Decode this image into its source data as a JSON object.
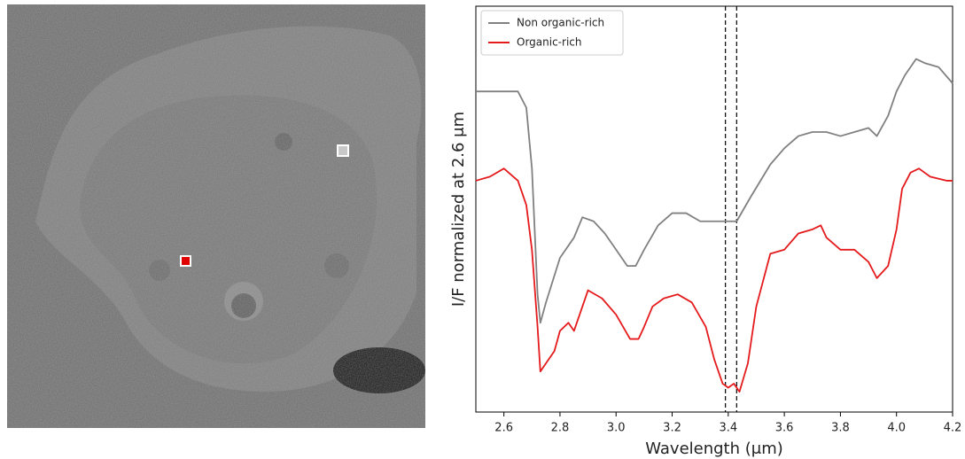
{
  "chart_data": {
    "type": "line",
    "xlabel": "Wavelength (μm)",
    "ylabel": "I/F normalized at 2.6 μm",
    "xlim": [
      2.5,
      4.2
    ],
    "xticks": [
      2.6,
      2.8,
      {
        "value": 3,
        "label": "3.0"
      },
      3.2,
      3.4,
      3.6,
      3.8,
      {
        "value": 4,
        "label": "4.0"
      },
      4.2
    ],
    "ylim": [
      0,
      1
    ],
    "vlines": [
      3.39,
      3.43
    ],
    "legend": "upper left",
    "series": [
      {
        "name": "Non organic-rich",
        "color": "#808080",
        "x": [
          2.5,
          2.55,
          2.6,
          2.65,
          2.68,
          2.7,
          2.72,
          2.73,
          2.75,
          2.8,
          2.85,
          2.88,
          2.92,
          2.96,
          3.0,
          3.04,
          3.07,
          3.1,
          3.15,
          3.2,
          3.25,
          3.3,
          3.35,
          3.39,
          3.43,
          3.48,
          3.55,
          3.6,
          3.65,
          3.7,
          3.75,
          3.8,
          3.85,
          3.9,
          3.93,
          3.97,
          4.0,
          4.03,
          4.07,
          4.1,
          4.15,
          4.2
        ],
        "values": [
          0.79,
          0.79,
          0.79,
          0.79,
          0.75,
          0.6,
          0.29,
          0.22,
          0.27,
          0.38,
          0.43,
          0.48,
          0.47,
          0.44,
          0.4,
          0.36,
          0.36,
          0.4,
          0.46,
          0.49,
          0.49,
          0.47,
          0.47,
          0.47,
          0.47,
          0.53,
          0.61,
          0.65,
          0.68,
          0.69,
          0.69,
          0.68,
          0.69,
          0.7,
          0.68,
          0.73,
          0.79,
          0.83,
          0.87,
          0.86,
          0.85,
          0.81
        ]
      },
      {
        "name": "Organic-rich",
        "color": "#e41a1c",
        "x": [
          2.5,
          2.55,
          2.6,
          2.65,
          2.68,
          2.7,
          2.72,
          2.73,
          2.75,
          2.78,
          2.8,
          2.83,
          2.85,
          2.88,
          2.9,
          2.95,
          3.0,
          3.05,
          3.08,
          3.1,
          3.13,
          3.17,
          3.22,
          3.27,
          3.32,
          3.35,
          3.38,
          3.4,
          3.42,
          3.44,
          3.47,
          3.5,
          3.55,
          3.6,
          3.65,
          3.7,
          3.73,
          3.75,
          3.8,
          3.85,
          3.9,
          3.93,
          3.97,
          4.0,
          4.02,
          4.05,
          4.08,
          4.12,
          4.18,
          4.2
        ],
        "values": [
          0.57,
          0.58,
          0.6,
          0.57,
          0.51,
          0.4,
          0.21,
          0.1,
          0.12,
          0.15,
          0.2,
          0.22,
          0.2,
          0.26,
          0.3,
          0.28,
          0.24,
          0.18,
          0.18,
          0.21,
          0.26,
          0.28,
          0.29,
          0.27,
          0.21,
          0.13,
          0.07,
          0.06,
          0.07,
          0.05,
          0.12,
          0.26,
          0.39,
          0.4,
          0.44,
          0.45,
          0.46,
          0.43,
          0.4,
          0.4,
          0.37,
          0.33,
          0.36,
          0.45,
          0.55,
          0.59,
          0.6,
          0.58,
          0.57,
          0.57
        ]
      }
    ]
  }
}
